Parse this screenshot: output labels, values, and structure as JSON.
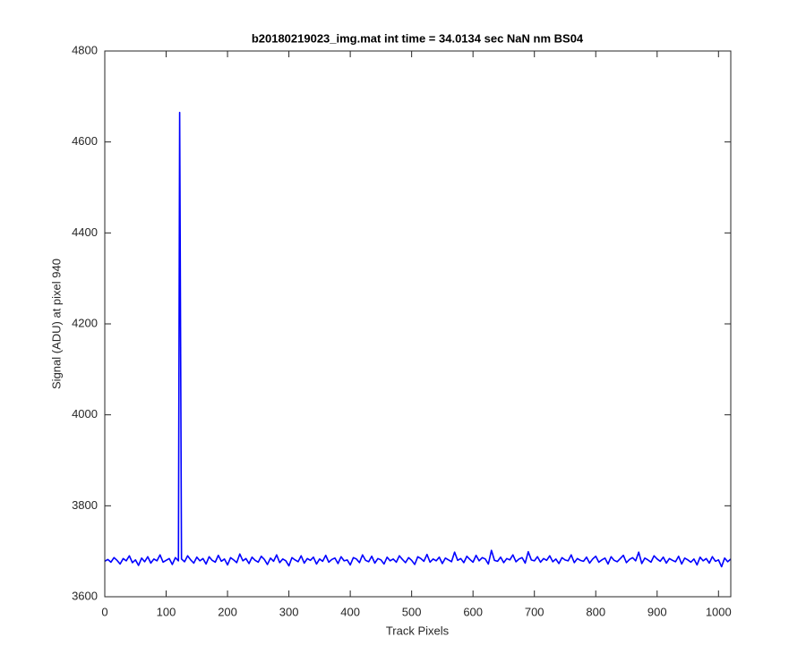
{
  "chart_data": {
    "type": "line",
    "title": "b20180219023_img.mat int time = 34.0134 sec  NaN nm BS04",
    "x_label": "Track Pixels",
    "y_label": "Signal (ADU) at pixel 940",
    "xlim": [
      0,
      1020
    ],
    "ylim": [
      3600,
      4800
    ],
    "xticks": [
      0,
      100,
      200,
      300,
      400,
      500,
      600,
      700,
      800,
      900,
      1000
    ],
    "yticks": [
      3600,
      3800,
      4000,
      4200,
      4400,
      4600,
      4800
    ],
    "grid": false,
    "x": [
      0,
      5,
      10,
      15,
      20,
      25,
      30,
      35,
      40,
      45,
      50,
      55,
      60,
      65,
      70,
      75,
      80,
      85,
      90,
      95,
      100,
      105,
      110,
      115,
      120,
      122,
      125,
      130,
      135,
      140,
      145,
      150,
      155,
      160,
      165,
      170,
      175,
      180,
      185,
      190,
      195,
      200,
      205,
      210,
      215,
      220,
      225,
      230,
      235,
      240,
      245,
      250,
      255,
      260,
      265,
      270,
      275,
      280,
      285,
      290,
      295,
      300,
      305,
      310,
      315,
      320,
      325,
      330,
      335,
      340,
      345,
      350,
      355,
      360,
      365,
      370,
      375,
      380,
      385,
      390,
      395,
      400,
      405,
      410,
      415,
      420,
      425,
      430,
      435,
      440,
      445,
      450,
      455,
      460,
      465,
      470,
      475,
      480,
      485,
      490,
      495,
      500,
      505,
      510,
      515,
      520,
      525,
      530,
      535,
      540,
      545,
      550,
      555,
      560,
      565,
      570,
      575,
      580,
      585,
      590,
      595,
      600,
      605,
      610,
      615,
      620,
      625,
      630,
      635,
      640,
      645,
      650,
      655,
      660,
      665,
      670,
      675,
      680,
      685,
      690,
      695,
      700,
      705,
      710,
      715,
      720,
      725,
      730,
      735,
      740,
      745,
      750,
      755,
      760,
      765,
      770,
      775,
      780,
      785,
      790,
      795,
      800,
      805,
      810,
      815,
      820,
      825,
      830,
      835,
      840,
      845,
      850,
      855,
      860,
      865,
      870,
      875,
      880,
      885,
      890,
      895,
      900,
      905,
      910,
      915,
      920,
      925,
      930,
      935,
      940,
      945,
      950,
      955,
      960,
      965,
      970,
      975,
      980,
      985,
      990,
      995,
      1000,
      1005,
      1010,
      1015,
      1020
    ],
    "series": [
      {
        "name": "signal",
        "color": "#0000ff",
        "values": [
          3678,
          3682,
          3676,
          3686,
          3680,
          3672,
          3684,
          3679,
          3690,
          3675,
          3681,
          3669,
          3685,
          3677,
          3688,
          3674,
          3683,
          3679,
          3692,
          3676,
          3680,
          3684,
          3671,
          3686,
          3679,
          4665,
          3683,
          3677,
          3690,
          3681,
          3674,
          3687,
          3679,
          3684,
          3672,
          3688,
          3680,
          3676,
          3691,
          3678,
          3683,
          3670,
          3686,
          3681,
          3675,
          3694,
          3679,
          3684,
          3673,
          3687,
          3680,
          3676,
          3689,
          3682,
          3671,
          3685,
          3678,
          3692,
          3675,
          3683,
          3679,
          3668,
          3686,
          3681,
          3677,
          3690,
          3674,
          3684,
          3680,
          3687,
          3672,
          3683,
          3678,
          3691,
          3676,
          3682,
          3685,
          3673,
          3688,
          3679,
          3681,
          3670,
          3686,
          3683,
          3675,
          3692,
          3680,
          3677,
          3689,
          3674,
          3684,
          3681,
          3672,
          3687,
          3679,
          3683,
          3676,
          3690,
          3682,
          3675,
          3686,
          3680,
          3671,
          3688,
          3684,
          3678,
          3693,
          3676,
          3683,
          3679,
          3687,
          3673,
          3685,
          3681,
          3677,
          3698,
          3680,
          3684,
          3675,
          3689,
          3682,
          3676,
          3691,
          3679,
          3686,
          3683,
          3672,
          3702,
          3680,
          3678,
          3687,
          3675,
          3684,
          3681,
          3692,
          3677,
          3683,
          3686,
          3674,
          3699,
          3681,
          3679,
          3688,
          3676,
          3684,
          3680,
          3690,
          3677,
          3683,
          3673,
          3686,
          3681,
          3679,
          3692,
          3675,
          3684,
          3680,
          3678,
          3687,
          3674,
          3683,
          3689,
          3676,
          3681,
          3685,
          3672,
          3688,
          3680,
          3677,
          3684,
          3691,
          3675,
          3682,
          3686,
          3679,
          3698,
          3673,
          3685,
          3681,
          3676,
          3690,
          3683,
          3678,
          3687,
          3674,
          3684,
          3680,
          3677,
          3689,
          3672,
          3685,
          3681,
          3676,
          3683,
          3670,
          3687,
          3679,
          3684,
          3674,
          3688,
          3678,
          3681,
          3666,
          3685,
          3677,
          3683
        ]
      }
    ]
  }
}
